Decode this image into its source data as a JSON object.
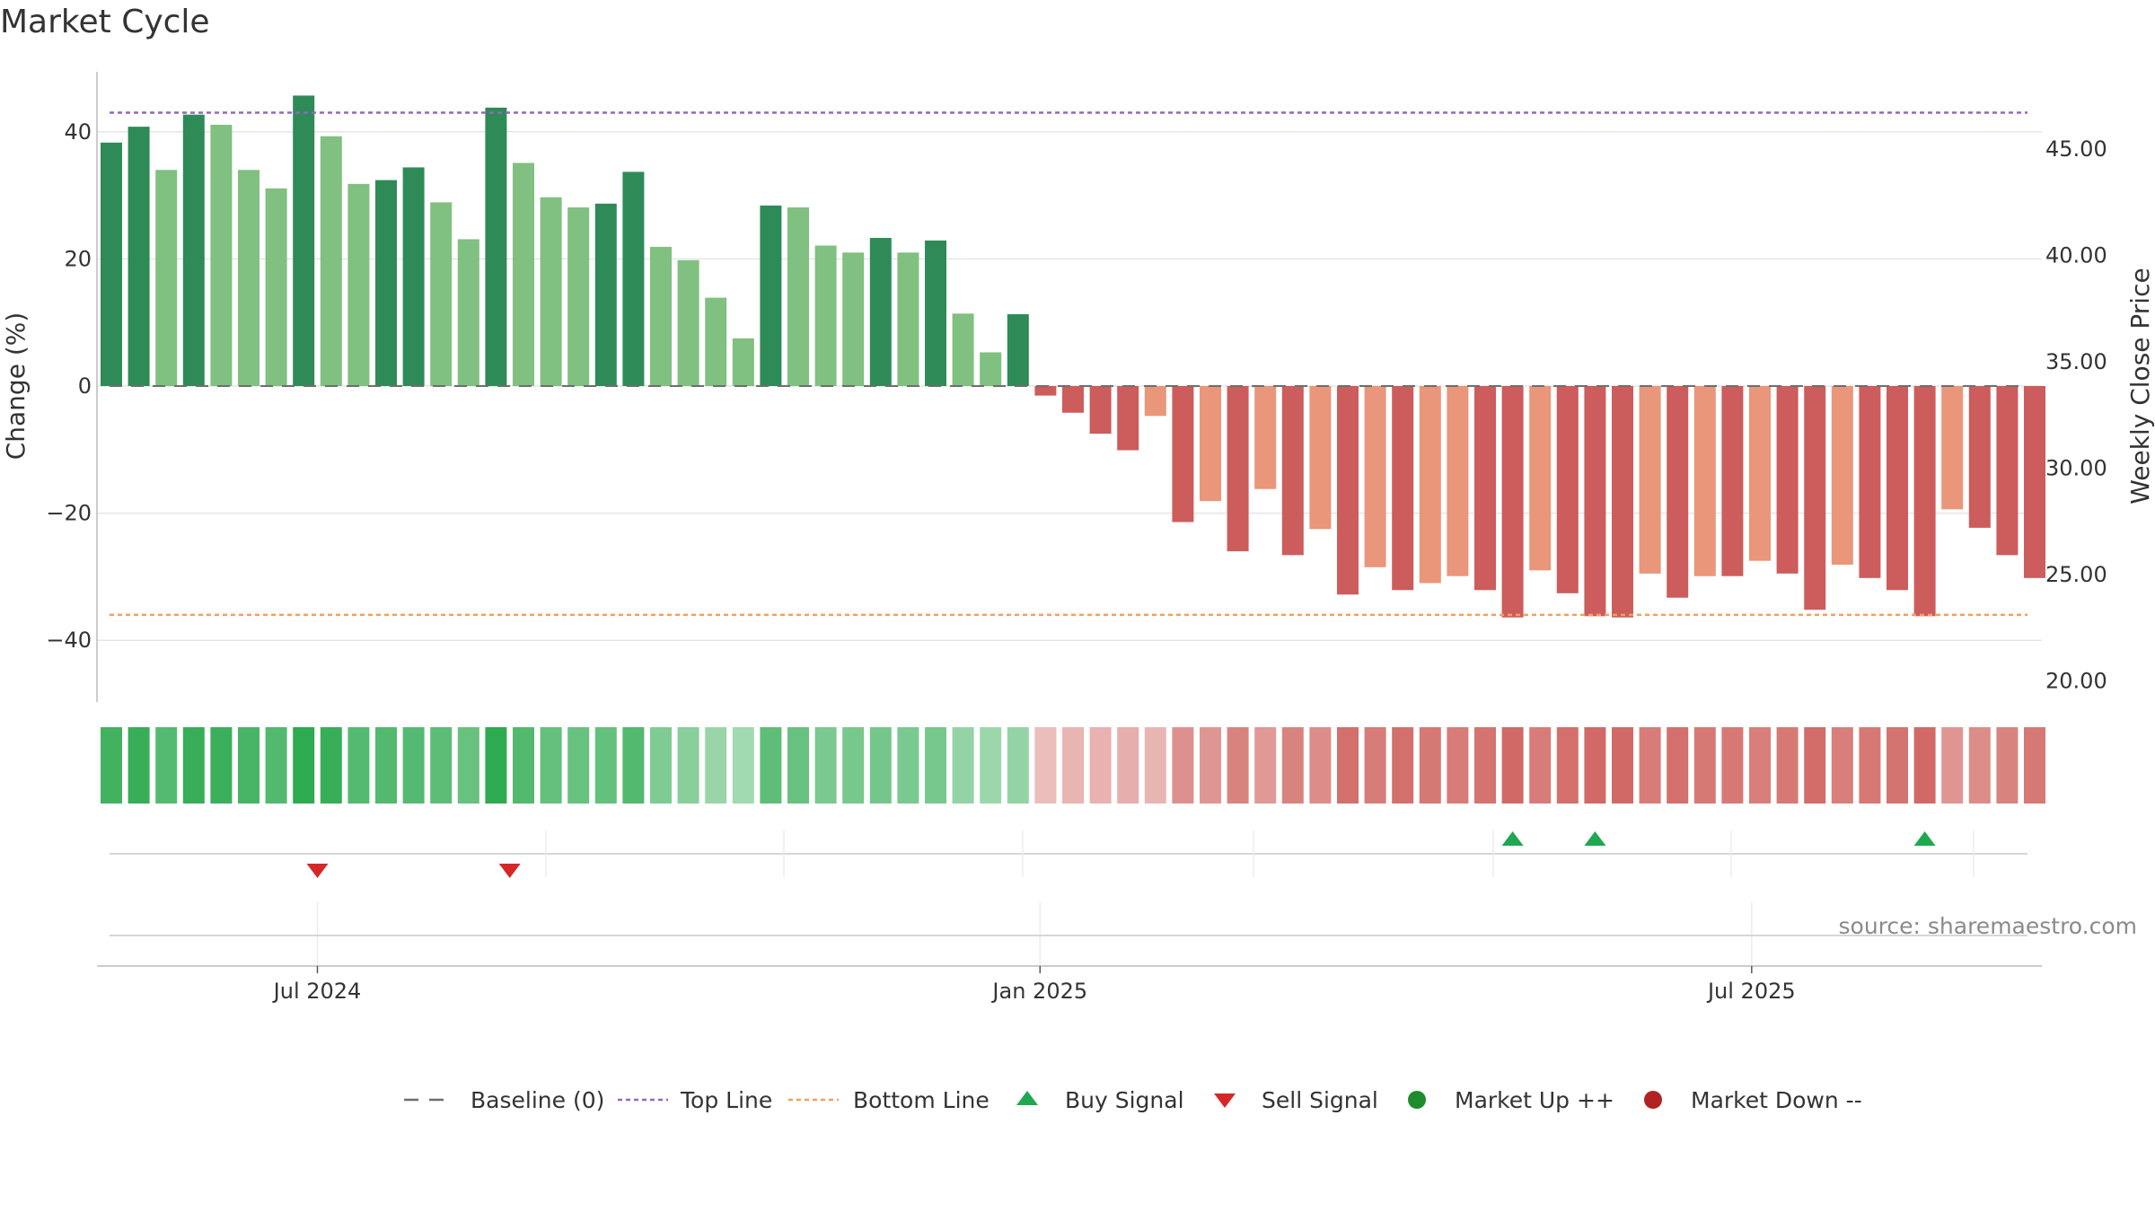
{
  "chart_data": {
    "type": "bar",
    "title": "Market Cycle",
    "ylabel_left": "Change (%)",
    "ylabel_right": "Weekly Close Price",
    "left_ticks": [
      40,
      20,
      0,
      -20,
      -40
    ],
    "left_tick_labels": [
      "40",
      "20",
      "0",
      "−20",
      "−40"
    ],
    "ylim_left": [
      -49,
      49
    ],
    "right_ticks": [
      45,
      40,
      35,
      30,
      25,
      20
    ],
    "right_tick_labels": [
      "45.00",
      "40.00",
      "35.00",
      "30.00",
      "25.00",
      "20.00"
    ],
    "ylim_right": [
      20,
      48
    ],
    "top_line": 43,
    "bottom_line": -36,
    "baseline": 0,
    "x_tick_labels": [
      "Jul 2024",
      "Jan 2025",
      "Jul 2025"
    ],
    "x_tick_weeks": [
      7.5,
      33.8,
      59.7
    ],
    "values": [
      38.3,
      40.8,
      34.0,
      42.7,
      41.1,
      34.0,
      31.1,
      45.7,
      39.3,
      31.8,
      32.4,
      34.4,
      28.9,
      23.1,
      43.8,
      35.1,
      29.7,
      28.1,
      28.7,
      33.7,
      21.9,
      19.8,
      13.9,
      7.5,
      28.4,
      28.1,
      22.1,
      21.0,
      23.3,
      21.0,
      22.9,
      11.4,
      5.3,
      11.3,
      -1.5,
      -4.2,
      -7.5,
      -10.1,
      -4.7,
      -21.4,
      -18.1,
      -26.0,
      -16.2,
      -26.6,
      -22.5,
      -32.8,
      -28.5,
      -32.1,
      -31.0,
      -29.9,
      -32.1,
      -36.4,
      -29.0,
      -32.6,
      -36.2,
      -36.4,
      -29.5,
      -33.3,
      -29.9,
      -29.9,
      -27.5,
      -29.5,
      -35.2,
      -28.1,
      -30.2,
      -32.1,
      -36.2,
      -19.4,
      -22.3,
      -26.6,
      -30.2
    ],
    "strength": [
      "strong",
      "strong",
      "weak",
      "strong",
      "weak",
      "weak",
      "weak",
      "strong",
      "weak",
      "weak",
      "strong",
      "strong",
      "weak",
      "weak",
      "strong",
      "weak",
      "weak",
      "weak",
      "strong",
      "strong",
      "weak",
      "weak",
      "weak",
      "weak",
      "strong",
      "weak",
      "weak",
      "weak",
      "strong",
      "weak",
      "strong",
      "weak",
      "weak",
      "strong",
      "strong",
      "strong",
      "strong",
      "strong",
      "weak",
      "strong",
      "weak",
      "strong",
      "weak",
      "strong",
      "weak",
      "strong",
      "weak",
      "strong",
      "weak",
      "weak",
      "strong",
      "strong",
      "weak",
      "strong",
      "strong",
      "strong",
      "weak",
      "strong",
      "weak",
      "strong",
      "weak",
      "strong",
      "strong",
      "weak",
      "strong",
      "strong",
      "strong",
      "weak",
      "strong",
      "strong",
      "strong"
    ],
    "heat_strip": [
      0.82,
      0.88,
      0.7,
      0.88,
      0.86,
      0.78,
      0.72,
      0.94,
      0.88,
      0.7,
      0.72,
      0.7,
      0.66,
      0.6,
      0.94,
      0.72,
      0.62,
      0.6,
      0.62,
      0.72,
      0.45,
      0.4,
      0.3,
      0.25,
      0.65,
      0.6,
      0.48,
      0.5,
      0.52,
      0.48,
      0.5,
      0.33,
      0.28,
      0.33,
      -0.15,
      -0.2,
      -0.22,
      -0.25,
      -0.2,
      -0.45,
      -0.42,
      -0.55,
      -0.4,
      -0.55,
      -0.48,
      -0.68,
      -0.6,
      -0.68,
      -0.62,
      -0.6,
      -0.66,
      -0.72,
      -0.6,
      -0.68,
      -0.72,
      -0.72,
      -0.6,
      -0.68,
      -0.62,
      -0.62,
      -0.58,
      -0.62,
      -0.7,
      -0.58,
      -0.62,
      -0.66,
      -0.72,
      -0.42,
      -0.48,
      -0.55,
      -0.62
    ],
    "buy_signals": [
      51,
      54,
      66
    ],
    "sell_signals": [
      7.5,
      14.5
    ],
    "source": "source: sharemaestro.com",
    "legend": [
      {
        "key": "baseline",
        "label": "Baseline (0)"
      },
      {
        "key": "top",
        "label": "Top Line"
      },
      {
        "key": "bottom",
        "label": "Bottom Line"
      },
      {
        "key": "buy",
        "label": "Buy Signal"
      },
      {
        "key": "sell",
        "label": "Sell Signal"
      },
      {
        "key": "up",
        "label": "Market Up ++"
      },
      {
        "key": "down",
        "label": "Market Down --"
      }
    ],
    "colors": {
      "strong_up": "#2e8b57",
      "weak_up": "#80c080",
      "strong_down": "#cd5c5c",
      "weak_down": "#e9967a",
      "top_line": "#9467bd",
      "bottom_line": "#f0a060",
      "buy": "#1fa84f",
      "sell": "#d62728",
      "market_up": "#1e8c2a",
      "market_down": "#b22222"
    }
  }
}
